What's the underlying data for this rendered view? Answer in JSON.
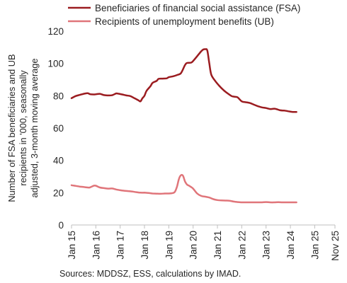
{
  "chart_data": {
    "type": "line",
    "ylabel": "Number of FSA beneficiaries and UB recipients in '000, seasonally adjusted, 3-month moving average",
    "ylabel_lines": [
      "Number of FSA beneficiaries and UB",
      "recipients in '000, seasonally",
      "adjusted, 3-month moving average"
    ],
    "yticks": [
      0,
      20,
      40,
      60,
      80,
      100,
      120
    ],
    "ylim": [
      0,
      120
    ],
    "xlim": [
      0,
      130
    ],
    "xtick_labels": [
      "Jan 15",
      "Jan 16",
      "Jan 17",
      "Jan 18",
      "Jan 19",
      "Jan 20",
      "Jan 21",
      "Jan 22",
      "Jan 23",
      "Jan 24",
      "Jan 25",
      "Nov 25"
    ],
    "xtick_positions": [
      0,
      12,
      24,
      36,
      48,
      60,
      72,
      84,
      96,
      108,
      120,
      130
    ],
    "x_unit": "months since Jan 2015",
    "grid": false,
    "legend_position": "top",
    "source": "Sources: MDDSZ, ESS, calculations by IMAD.",
    "series": [
      {
        "name": "Beneficiaries of financial social assistance (FSA)",
        "color": "#9b1c20",
        "points": [
          [
            0,
            78.5
          ],
          [
            2,
            79.8
          ],
          [
            4,
            80.5
          ],
          [
            6,
            81.2
          ],
          [
            8,
            81.6
          ],
          [
            9,
            81.0
          ],
          [
            11,
            80.8
          ],
          [
            12,
            80.9
          ],
          [
            14,
            81.2
          ],
          [
            16,
            80.4
          ],
          [
            18,
            80.2
          ],
          [
            20,
            80.3
          ],
          [
            22,
            81.4
          ],
          [
            23,
            81.3
          ],
          [
            25,
            80.8
          ],
          [
            27,
            80.2
          ],
          [
            29,
            79.8
          ],
          [
            31,
            78.5
          ],
          [
            33,
            77.2
          ],
          [
            34,
            76.5
          ],
          [
            35,
            78.5
          ],
          [
            36,
            80.0
          ],
          [
            37,
            83.0
          ],
          [
            39,
            86.0
          ],
          [
            40,
            88.0
          ],
          [
            42,
            89.2
          ],
          [
            43,
            90.5
          ],
          [
            45,
            90.6
          ],
          [
            47,
            90.8
          ],
          [
            48,
            91.5
          ],
          [
            50,
            92.0
          ],
          [
            52,
            92.8
          ],
          [
            54,
            94.0
          ],
          [
            56,
            99.0
          ],
          [
            57,
            100.3
          ],
          [
            59,
            100.5
          ],
          [
            60,
            101.5
          ],
          [
            62,
            104.5
          ],
          [
            64,
            107.5
          ],
          [
            65,
            108.6
          ],
          [
            66,
            108.8
          ],
          [
            67,
            108.0
          ],
          [
            68,
            100.0
          ],
          [
            69,
            93.0
          ],
          [
            71,
            89.0
          ],
          [
            73,
            86.0
          ],
          [
            75,
            83.5
          ],
          [
            77,
            81.5
          ],
          [
            79,
            79.8
          ],
          [
            80,
            79.5
          ],
          [
            81,
            79.3
          ],
          [
            82,
            79.0
          ],
          [
            84,
            76.5
          ],
          [
            86,
            76.0
          ],
          [
            88,
            75.5
          ],
          [
            90,
            74.5
          ],
          [
            92,
            73.5
          ],
          [
            94,
            72.8
          ],
          [
            96,
            72.4
          ],
          [
            98,
            71.8
          ],
          [
            100,
            72.0
          ],
          [
            101,
            71.8
          ],
          [
            103,
            71.0
          ],
          [
            105,
            70.8
          ],
          [
            107,
            70.4
          ],
          [
            109,
            70.0
          ],
          [
            110,
            70.0
          ],
          [
            111,
            70.0
          ]
        ]
      },
      {
        "name": "Recipients of unemployment benefits (UB)",
        "color": "#e0757a",
        "points": [
          [
            0,
            24.6
          ],
          [
            2,
            24.2
          ],
          [
            4,
            23.8
          ],
          [
            6,
            23.5
          ],
          [
            8,
            23.2
          ],
          [
            9,
            23.2
          ],
          [
            11,
            24.3
          ],
          [
            12,
            24.3
          ],
          [
            14,
            23.2
          ],
          [
            16,
            22.8
          ],
          [
            18,
            22.5
          ],
          [
            20,
            22.6
          ],
          [
            22,
            22.0
          ],
          [
            24,
            21.5
          ],
          [
            26,
            21.2
          ],
          [
            28,
            21.0
          ],
          [
            30,
            20.7
          ],
          [
            32,
            20.3
          ],
          [
            34,
            20.0
          ],
          [
            36,
            20.0
          ],
          [
            38,
            19.8
          ],
          [
            40,
            19.5
          ],
          [
            42,
            19.4
          ],
          [
            44,
            19.3
          ],
          [
            46,
            19.5
          ],
          [
            48,
            19.5
          ],
          [
            50,
            19.8
          ],
          [
            51,
            20.5
          ],
          [
            52,
            23.5
          ],
          [
            53,
            28.5
          ],
          [
            54,
            30.8
          ],
          [
            55,
            30.5
          ],
          [
            56,
            27.0
          ],
          [
            57,
            25.0
          ],
          [
            58,
            24.3
          ],
          [
            59,
            23.5
          ],
          [
            60,
            22.5
          ],
          [
            62,
            19.5
          ],
          [
            64,
            18.0
          ],
          [
            66,
            17.5
          ],
          [
            68,
            17.0
          ],
          [
            70,
            16.0
          ],
          [
            72,
            15.4
          ],
          [
            74,
            15.2
          ],
          [
            76,
            15.1
          ],
          [
            78,
            15.0
          ],
          [
            80,
            14.5
          ],
          [
            82,
            14.2
          ],
          [
            84,
            14.0
          ],
          [
            86,
            14.0
          ],
          [
            88,
            14.0
          ],
          [
            90,
            14.0
          ],
          [
            92,
            14.0
          ],
          [
            94,
            14.0
          ],
          [
            96,
            14.2
          ],
          [
            98,
            14.0
          ],
          [
            100,
            14.0
          ],
          [
            102,
            14.1
          ],
          [
            104,
            14.0
          ],
          [
            106,
            14.0
          ],
          [
            108,
            14.0
          ],
          [
            110,
            14.0
          ],
          [
            111,
            14.0
          ]
        ]
      }
    ]
  }
}
